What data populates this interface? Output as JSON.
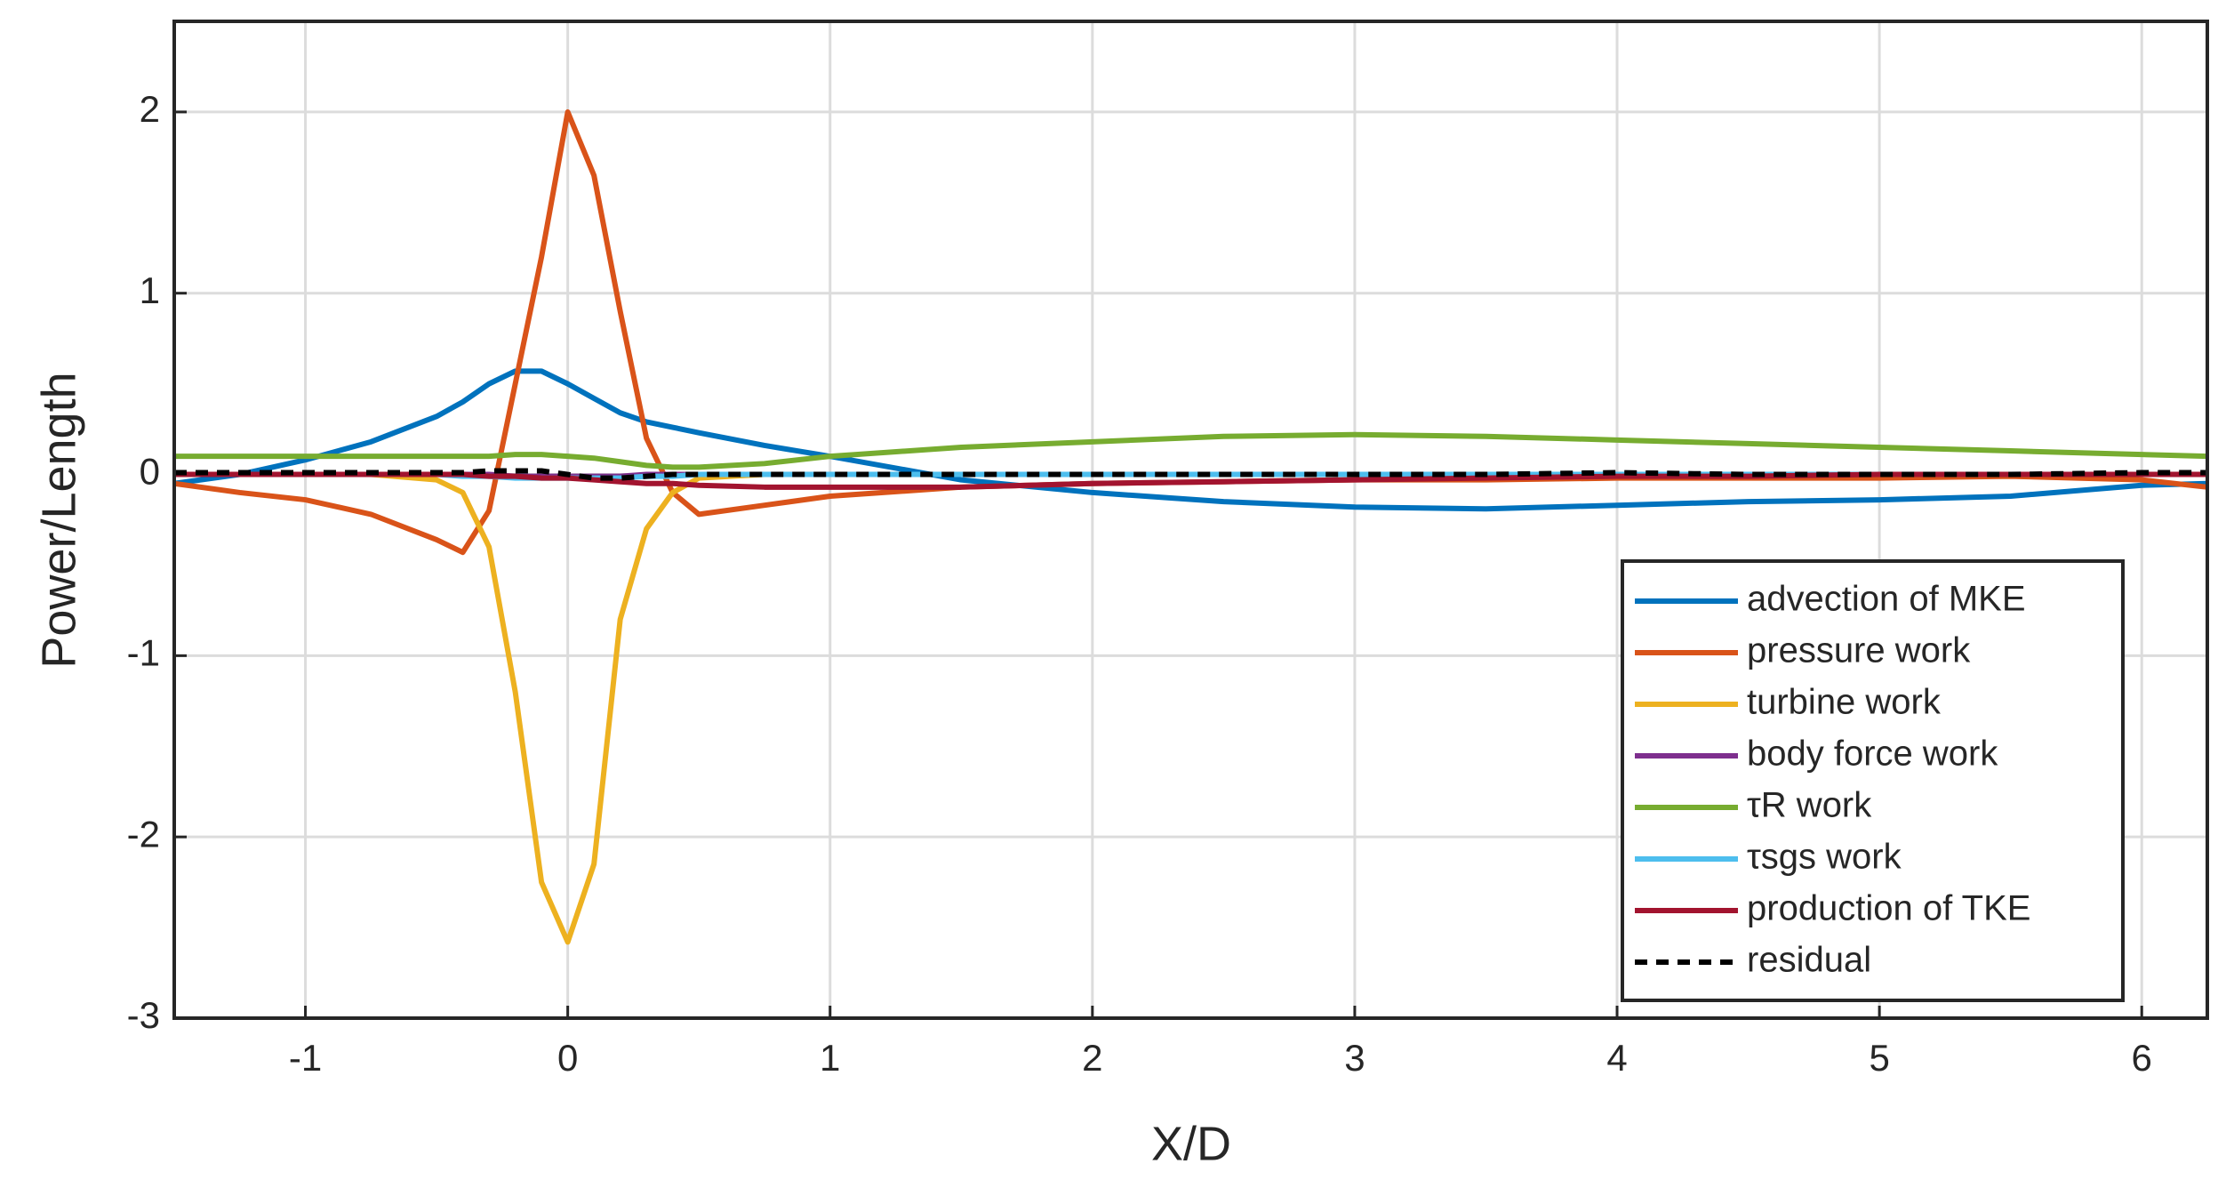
{
  "chart_data": {
    "type": "line",
    "xlabel": "X/D",
    "ylabel": "Power/Length",
    "x": [
      -1.5,
      -1.25,
      -1,
      -0.75,
      -0.5,
      -0.4,
      -0.3,
      -0.2,
      -0.1,
      0,
      0.1,
      0.2,
      0.3,
      0.4,
      0.5,
      0.75,
      1,
      1.5,
      2,
      2.5,
      3,
      3.5,
      4,
      4.5,
      5,
      5.5,
      6,
      6.25
    ],
    "xlim": [
      -1.5,
      6.25
    ],
    "xticks": [
      -1,
      0,
      1,
      2,
      3,
      4,
      5,
      6
    ],
    "ylim": [
      -3,
      2.5
    ],
    "yticks": [
      -3,
      -2,
      -1,
      0,
      1,
      2
    ],
    "grid": true,
    "legend": "southeast",
    "series": [
      {
        "name": "advection of MKE",
        "color": "#0072bd",
        "values": [
          -0.05,
          0.0,
          0.08,
          0.18,
          0.32,
          0.4,
          0.5,
          0.57,
          0.57,
          0.5,
          0.42,
          0.34,
          0.29,
          0.26,
          0.23,
          0.16,
          0.1,
          -0.03,
          -0.1,
          -0.15,
          -0.18,
          -0.19,
          -0.17,
          -0.15,
          -0.14,
          -0.12,
          -0.06,
          -0.05
        ]
      },
      {
        "name": "pressure work",
        "color": "#d95319",
        "values": [
          -0.05,
          -0.1,
          -0.14,
          -0.22,
          -0.36,
          -0.43,
          -0.2,
          0.5,
          1.2,
          2.0,
          1.65,
          0.9,
          0.2,
          -0.1,
          -0.22,
          -0.17,
          -0.12,
          -0.07,
          -0.05,
          -0.04,
          -0.03,
          -0.03,
          -0.02,
          -0.02,
          -0.02,
          -0.01,
          -0.03,
          -0.07
        ]
      },
      {
        "name": "turbine work",
        "color": "#edb120",
        "values": [
          0,
          0,
          0,
          0,
          -0.03,
          -0.1,
          -0.4,
          -1.2,
          -2.25,
          -2.58,
          -2.15,
          -0.8,
          -0.3,
          -0.1,
          -0.02,
          0,
          0,
          0,
          0,
          0,
          0,
          0,
          0,
          0,
          0,
          0,
          0,
          0
        ]
      },
      {
        "name": "body force work",
        "color": "#7e2f8e",
        "values": [
          0,
          0,
          0,
          0,
          0,
          0,
          0,
          -0.01,
          -0.01,
          -0.01,
          -0.01,
          -0.01,
          0,
          0,
          0,
          0,
          0,
          0,
          0,
          0,
          0,
          0,
          0,
          0,
          0,
          0,
          0,
          0
        ]
      },
      {
        "name": "τR work",
        "color": "#77ac30",
        "values": [
          0.1,
          0.1,
          0.1,
          0.1,
          0.1,
          0.1,
          0.1,
          0.11,
          0.11,
          0.1,
          0.09,
          0.07,
          0.05,
          0.04,
          0.04,
          0.06,
          0.1,
          0.15,
          0.18,
          0.21,
          0.22,
          0.21,
          0.19,
          0.17,
          0.15,
          0.13,
          0.11,
          0.1
        ]
      },
      {
        "name": "τsgs work",
        "color": "#4dbeee",
        "values": [
          0,
          0,
          0,
          0,
          0,
          -0.01,
          -0.01,
          -0.02,
          -0.02,
          -0.02,
          -0.02,
          -0.02,
          -0.01,
          -0.01,
          0,
          0,
          0,
          0,
          0,
          0,
          0,
          0,
          0,
          0,
          0,
          0,
          0,
          0
        ]
      },
      {
        "name": "production of TKE",
        "color": "#a2142f",
        "values": [
          0,
          0,
          0,
          0,
          0,
          0,
          -0.01,
          -0.01,
          -0.02,
          -0.02,
          -0.03,
          -0.04,
          -0.05,
          -0.05,
          -0.06,
          -0.07,
          -0.07,
          -0.07,
          -0.05,
          -0.04,
          -0.03,
          -0.02,
          -0.01,
          -0.01,
          0,
          0,
          0,
          0
        ]
      },
      {
        "name": "residual",
        "color": "#000000",
        "dash": true,
        "values": [
          0.01,
          0.01,
          0.01,
          0.01,
          0.01,
          0.01,
          0.02,
          0.02,
          0.02,
          0.0,
          -0.02,
          -0.02,
          -0.01,
          0,
          0,
          0,
          0,
          0,
          0,
          0,
          0,
          0,
          0.01,
          0,
          0,
          0,
          0.01,
          0.01
        ]
      }
    ]
  }
}
